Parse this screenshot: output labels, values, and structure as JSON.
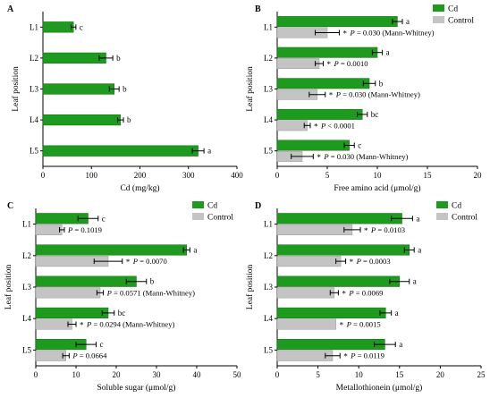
{
  "legend": {
    "cd_label": "Cd",
    "control_label": "Control",
    "cd_color": "#1e9a1e",
    "control_color": "#c4c4c4"
  },
  "chart_data": [
    {
      "type": "bar",
      "panel": "A",
      "orientation": "horizontal",
      "categories": [
        "L1",
        "L2",
        "L3",
        "L4",
        "L5"
      ],
      "ylabel": "Leaf position",
      "xlabel": "Cd (mg/kg)",
      "xlim": [
        0,
        400
      ],
      "xticks": [
        0,
        100,
        200,
        300,
        400
      ],
      "series": [
        {
          "key": "cd",
          "values": [
            63,
            130,
            147,
            160,
            320
          ],
          "errors": [
            5,
            14,
            10,
            6,
            12
          ]
        }
      ],
      "letters": [
        "c",
        "b",
        "b",
        "b",
        "a"
      ]
    },
    {
      "type": "bar",
      "panel": "B",
      "orientation": "horizontal",
      "categories": [
        "L1",
        "L2",
        "L3",
        "L4",
        "L5"
      ],
      "ylabel": "Leaf position",
      "xlabel": "Free amino acid (μmol/g)",
      "xlim": [
        0,
        20
      ],
      "xticks": [
        0,
        5,
        10,
        15,
        20
      ],
      "series": [
        {
          "key": "cd",
          "name": "Cd",
          "values": [
            12.0,
            10.0,
            9.2,
            8.5,
            7.2
          ],
          "errors": [
            0.5,
            0.5,
            0.6,
            0.5,
            0.5
          ]
        },
        {
          "key": "control",
          "name": "Control",
          "values": [
            5.0,
            4.2,
            4.0,
            3.0,
            2.5
          ],
          "errors": [
            1.2,
            0.4,
            0.8,
            0.3,
            1.1
          ]
        }
      ],
      "letters": [
        "a",
        "a",
        "b",
        "bc",
        "c"
      ],
      "annotations": [
        "P = 0.030 (Mann-Whitney)",
        "P = 0.0010",
        "P = 0.030 (Mann-Whitney)",
        "P < 0.0001",
        "P = 0.030 (Mann-Whitney)"
      ]
    },
    {
      "type": "bar",
      "panel": "C",
      "orientation": "horizontal",
      "categories": [
        "L1",
        "L2",
        "L3",
        "L4",
        "L5"
      ],
      "ylabel": "Leaf position",
      "xlabel": "Soluble sugar (μmol/g)",
      "xlim": [
        0,
        50
      ],
      "xticks": [
        0,
        10,
        20,
        30,
        40,
        50
      ],
      "series": [
        {
          "key": "cd",
          "name": "Cd",
          "values": [
            13.0,
            37.5,
            25.0,
            18.0,
            12.5
          ],
          "errors": [
            2.5,
            0.8,
            2.5,
            1.5,
            2.5
          ]
        },
        {
          "key": "control",
          "name": "Control",
          "values": [
            6.5,
            18.0,
            16.0,
            9.0,
            7.5
          ],
          "errors": [
            0.6,
            3.5,
            0.8,
            1.0,
            0.8
          ]
        }
      ],
      "letters": [
        "c",
        "a",
        "b",
        "bc",
        "c"
      ],
      "annotations": [
        "P = 0.1019",
        "P = 0.0070",
        "P = 0.0571 (Mann-Whitney)",
        "P = 0.0294 (Mann-Whitney)",
        "P = 0.0664"
      ],
      "stars": [
        false,
        true,
        false,
        true,
        false
      ]
    },
    {
      "type": "bar",
      "panel": "D",
      "orientation": "horizontal",
      "categories": [
        "L1",
        "L2",
        "L3",
        "L4",
        "L5"
      ],
      "ylabel": "Leaf position",
      "xlabel": "Metallothionein (μmol/g)",
      "xlim": [
        0,
        25
      ],
      "xticks": [
        0,
        5,
        10,
        15,
        20,
        25
      ],
      "series": [
        {
          "key": "cd",
          "name": "Cd",
          "values": [
            15.3,
            16.2,
            15.0,
            13.3,
            13.2
          ],
          "errors": [
            1.3,
            0.6,
            1.2,
            0.7,
            1.3
          ]
        },
        {
          "key": "control",
          "name": "Control",
          "values": [
            9.2,
            7.8,
            7.0,
            7.2,
            6.8
          ],
          "errors": [
            1.0,
            0.6,
            0.5,
            0.0,
            0.9
          ]
        }
      ],
      "letters": [
        "a",
        "a",
        "a",
        "a",
        "a"
      ],
      "annotations": [
        "P = 0.0103",
        "P = 0.0003",
        "P = 0.0069",
        "P = 0.0015",
        "P = 0.0119"
      ]
    }
  ]
}
